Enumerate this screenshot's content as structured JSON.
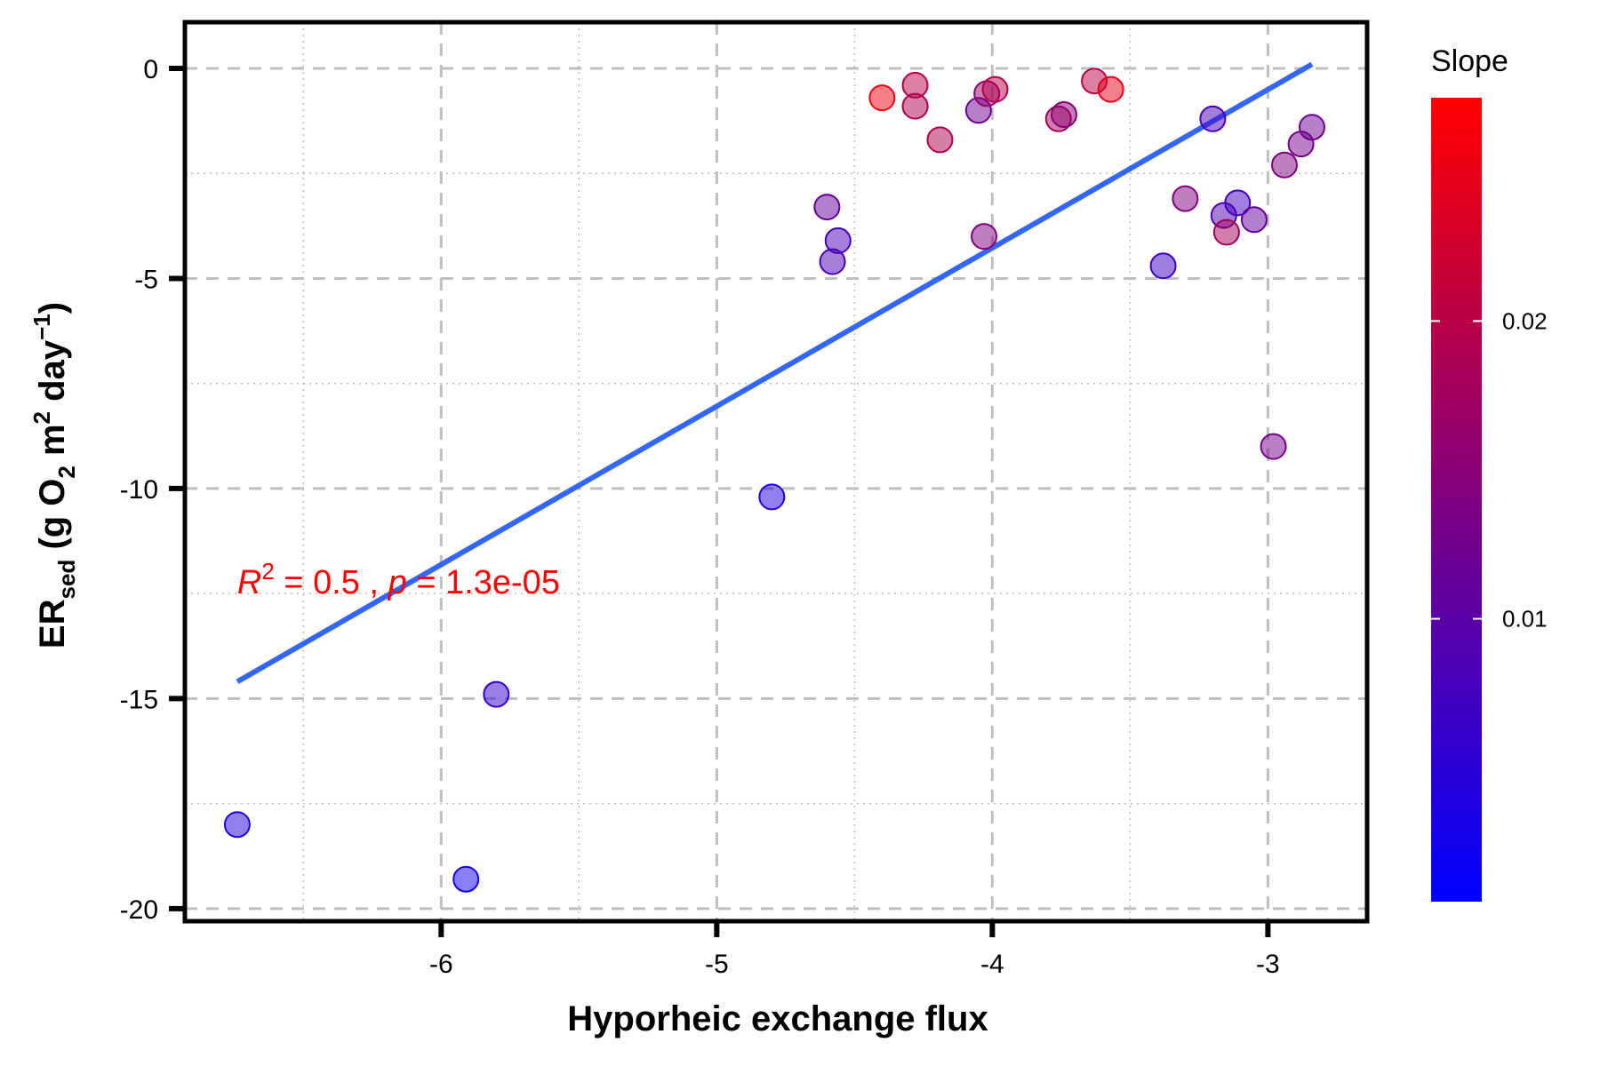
{
  "chart_data": {
    "type": "scatter",
    "xlabel": "Hyporheic exchange flux",
    "ylabel": {
      "main": "ER",
      "sub": "sed",
      "units_open": " (g O",
      "units_o_sub": "2",
      "units_m": " m",
      "units_m_sup": "2",
      "units_day": " day",
      "units_day_sup": "−1",
      "units_close": ")"
    },
    "xlim": [
      -6.93,
      -2.64
    ],
    "ylim": [
      -20.3,
      1.1
    ],
    "x_ticks": [
      -6,
      -5,
      -4,
      -3
    ],
    "x_tick_labels": [
      "-6",
      "-5",
      "-4",
      "-3"
    ],
    "y_ticks": [
      0,
      -5,
      -10,
      -15,
      -20
    ],
    "y_tick_labels": [
      "0",
      "-5",
      "-10",
      "-15",
      "-20"
    ],
    "grid": true,
    "legend": {
      "title": "Slope",
      "placement": "right",
      "color_min": "#0000ff",
      "color_max": "#ff0000",
      "range": [
        0.0005,
        0.0275
      ],
      "ticks": [
        0.02,
        0.01
      ],
      "tick_labels": [
        "0.02",
        "0.01"
      ]
    },
    "fit_line": {
      "x": [
        -6.74,
        -2.84
      ],
      "y": [
        -14.6,
        0.1
      ],
      "color": "#3366ff"
    },
    "annotation": {
      "r": "R",
      "sup": "2",
      "mid": " = 0.5 , ",
      "p": "p",
      "end": " = 1.3e-05",
      "x": -6.74,
      "y": -12.2
    },
    "points": [
      {
        "x": -6.74,
        "y": -18.0,
        "slope": 0.0045
      },
      {
        "x": -5.91,
        "y": -19.3,
        "slope": 0.0025
      },
      {
        "x": -5.8,
        "y": -14.9,
        "slope": 0.006
      },
      {
        "x": -4.8,
        "y": -10.2,
        "slope": 0.004
      },
      {
        "x": -4.6,
        "y": -3.3,
        "slope": 0.011
      },
      {
        "x": -4.56,
        "y": -4.1,
        "slope": 0.008
      },
      {
        "x": -4.58,
        "y": -4.6,
        "slope": 0.0085
      },
      {
        "x": -4.4,
        "y": -0.7,
        "slope": 0.026
      },
      {
        "x": -4.28,
        "y": -0.4,
        "slope": 0.02
      },
      {
        "x": -4.28,
        "y": -0.9,
        "slope": 0.019
      },
      {
        "x": -4.19,
        "y": -1.7,
        "slope": 0.019
      },
      {
        "x": -4.05,
        "y": -1.0,
        "slope": 0.012
      },
      {
        "x": -4.02,
        "y": -0.6,
        "slope": 0.016
      },
      {
        "x": -3.99,
        "y": -0.5,
        "slope": 0.02
      },
      {
        "x": -4.03,
        "y": -4.0,
        "slope": 0.014
      },
      {
        "x": -3.76,
        "y": -1.2,
        "slope": 0.018
      },
      {
        "x": -3.74,
        "y": -1.1,
        "slope": 0.015
      },
      {
        "x": -3.63,
        "y": -0.3,
        "slope": 0.02
      },
      {
        "x": -3.57,
        "y": -0.5,
        "slope": 0.025
      },
      {
        "x": -3.38,
        "y": -4.7,
        "slope": 0.007
      },
      {
        "x": -3.3,
        "y": -3.1,
        "slope": 0.014
      },
      {
        "x": -3.2,
        "y": -1.2,
        "slope": 0.008
      },
      {
        "x": -3.16,
        "y": -3.5,
        "slope": 0.009
      },
      {
        "x": -3.15,
        "y": -3.9,
        "slope": 0.018
      },
      {
        "x": -3.11,
        "y": -3.2,
        "slope": 0.0075
      },
      {
        "x": -3.05,
        "y": -3.6,
        "slope": 0.011
      },
      {
        "x": -2.98,
        "y": -9.0,
        "slope": 0.013
      },
      {
        "x": -2.94,
        "y": -2.3,
        "slope": 0.014
      },
      {
        "x": -2.88,
        "y": -1.8,
        "slope": 0.013
      },
      {
        "x": -2.84,
        "y": -1.4,
        "slope": 0.012
      }
    ]
  }
}
